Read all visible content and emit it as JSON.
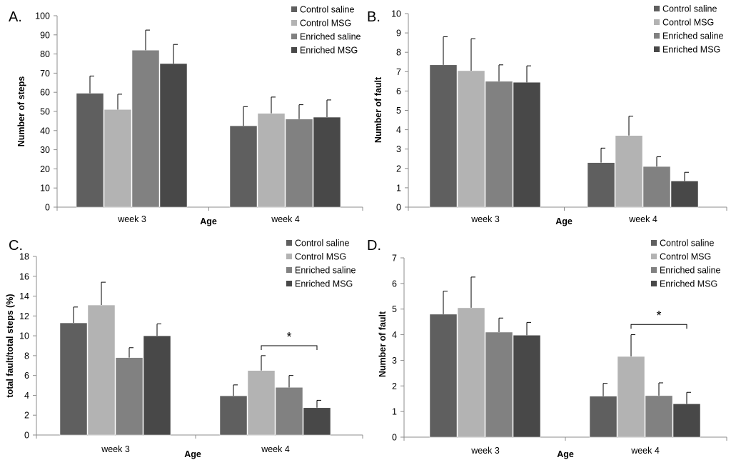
{
  "colors": {
    "Control saline": "#5f5f5f",
    "Control MSG": "#b3b3b3",
    "Enriched saline": "#818181",
    "Enriched MSG": "#484848",
    "axis": "#8c8c8c"
  },
  "chart_data": [
    {
      "panel_label": "A.",
      "type": "bar",
      "categories": [
        "week 3",
        "week 4"
      ],
      "xlabel": "Age",
      "ylabel": "Number of steps",
      "ylim": [
        0,
        100
      ],
      "yticks": [
        0,
        10,
        20,
        30,
        40,
        50,
        60,
        70,
        80,
        90,
        100
      ],
      "legend_position": "top-right",
      "series": [
        {
          "name": "Control saline",
          "values": [
            59.5,
            42.5
          ],
          "errors": [
            9,
            10
          ]
        },
        {
          "name": "Control MSG",
          "values": [
            51,
            49
          ],
          "errors": [
            8,
            8.5
          ]
        },
        {
          "name": "Enriched saline",
          "values": [
            82,
            46
          ],
          "errors": [
            10.5,
            7.5
          ]
        },
        {
          "name": "Enriched MSG",
          "values": [
            75,
            47
          ],
          "errors": [
            10,
            9
          ]
        }
      ],
      "annotations": []
    },
    {
      "panel_label": "B.",
      "type": "bar",
      "categories": [
        "week 3",
        "week 4"
      ],
      "xlabel": "Age",
      "ylabel": "Number of fault",
      "ylim": [
        0,
        10
      ],
      "yticks": [
        0,
        1,
        2,
        3,
        4,
        5,
        6,
        7,
        8,
        9,
        10
      ],
      "legend_position": "top-right",
      "series": [
        {
          "name": "Control saline",
          "values": [
            7.35,
            2.3
          ],
          "errors": [
            1.45,
            0.75
          ]
        },
        {
          "name": "Control MSG",
          "values": [
            7.05,
            3.7
          ],
          "errors": [
            1.65,
            1.0
          ]
        },
        {
          "name": "Enriched saline",
          "values": [
            6.5,
            2.1
          ],
          "errors": [
            0.85,
            0.5
          ]
        },
        {
          "name": "Enriched MSG",
          "values": [
            6.45,
            1.35
          ],
          "errors": [
            0.85,
            0.45
          ]
        }
      ],
      "annotations": []
    },
    {
      "panel_label": "C.",
      "type": "bar",
      "categories": [
        "week 3",
        "week 4"
      ],
      "xlabel": "Age",
      "ylabel": "total fault/total steps (%)",
      "ylim": [
        0,
        18
      ],
      "yticks": [
        0,
        2,
        4,
        6,
        8,
        10,
        12,
        14,
        16,
        18
      ],
      "legend_position": "top-right",
      "series": [
        {
          "name": "Control saline",
          "values": [
            11.3,
            3.95
          ],
          "errors": [
            1.6,
            1.1
          ]
        },
        {
          "name": "Control MSG",
          "values": [
            13.1,
            6.5
          ],
          "errors": [
            2.3,
            1.5
          ]
        },
        {
          "name": "Enriched saline",
          "values": [
            7.8,
            4.8
          ],
          "errors": [
            1.0,
            1.2
          ]
        },
        {
          "name": "Enriched MSG",
          "values": [
            10.0,
            2.75
          ],
          "errors": [
            1.2,
            0.75
          ]
        }
      ],
      "annotations": [
        {
          "text": "*",
          "category": "week 4",
          "from_series": 1,
          "to_series": 3,
          "y": 9.0
        }
      ]
    },
    {
      "panel_label": "D.",
      "type": "bar",
      "categories": [
        "week 3",
        "week 4"
      ],
      "xlabel": "Age",
      "ylabel": "Number of fault",
      "ylim": [
        0,
        7
      ],
      "yticks": [
        0,
        1,
        2,
        3,
        4,
        5,
        6,
        7
      ],
      "legend_position": "top-right",
      "series": [
        {
          "name": "Control saline",
          "values": [
            4.8,
            1.6
          ],
          "errors": [
            0.9,
            0.5
          ]
        },
        {
          "name": "Control MSG",
          "values": [
            5.05,
            3.15
          ],
          "errors": [
            1.2,
            0.85
          ]
        },
        {
          "name": "Enriched saline",
          "values": [
            4.1,
            1.62
          ],
          "errors": [
            0.55,
            0.5
          ]
        },
        {
          "name": "Enriched MSG",
          "values": [
            3.98,
            1.3
          ],
          "errors": [
            0.5,
            0.45
          ]
        }
      ],
      "annotations": [
        {
          "text": "*",
          "category": "week 4",
          "from_series": 1,
          "to_series": 3,
          "y": 4.4
        }
      ]
    }
  ]
}
